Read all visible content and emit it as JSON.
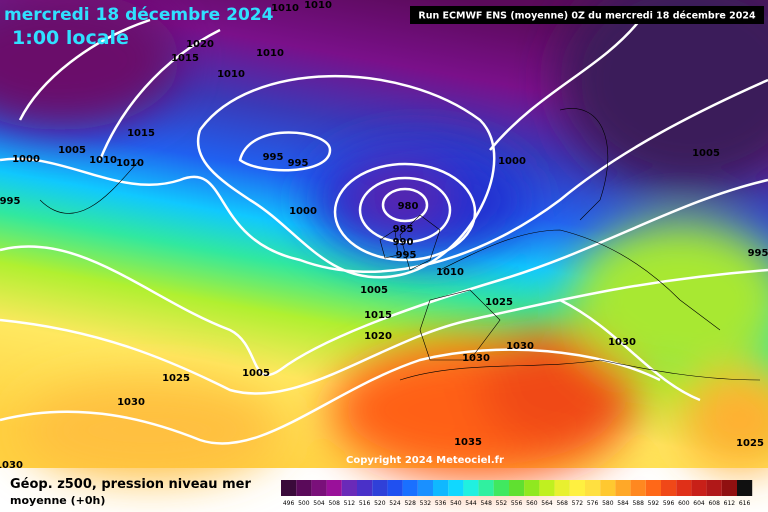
{
  "header": {
    "date": "mercredi 18 décembre 2024",
    "time": "1:00 locale",
    "run": "Run ECMWF ENS (moyenne) 0Z du mercredi 18 décembre 2024"
  },
  "isobar_labels": [
    "1010",
    "1010",
    "1020",
    "1015",
    "1010",
    "1010",
    "1015",
    "1005",
    "1000",
    "1010",
    "1010",
    "995",
    "995",
    "1000",
    "1005",
    "995",
    "1000",
    "980",
    "985",
    "990",
    "995",
    "1010",
    "1005",
    "1025",
    "1015",
    "1020",
    "1030",
    "1030",
    "1030",
    "1005",
    "1025",
    "1030",
    "1035",
    "1025",
    "995",
    "1030"
  ],
  "copyright": "Copyright 2024 Meteociel.fr",
  "legend": {
    "title": "Géop. z500, pression niveau mer",
    "subtitle": "moyenne   (+0h)",
    "scale": [
      "496",
      "500",
      "504",
      "508",
      "512",
      "516",
      "520",
      "524",
      "528",
      "532",
      "536",
      "540",
      "544",
      "548",
      "552",
      "556",
      "560",
      "564",
      "568",
      "572",
      "576",
      "580",
      "584",
      "588",
      "592",
      "596",
      "600",
      "604",
      "608",
      "612",
      "616"
    ],
    "colors": [
      "#3a0a3a",
      "#5a0a5a",
      "#7a107a",
      "#9a109a",
      "#6a2ab8",
      "#4a30c8",
      "#3040d8",
      "#2050f0",
      "#1a70ff",
      "#1a90ff",
      "#10b8ff",
      "#10d8ff",
      "#20f0e0",
      "#30f0a0",
      "#40e860",
      "#60e030",
      "#90e820",
      "#c0f020",
      "#e8f030",
      "#fff040",
      "#ffe040",
      "#ffc830",
      "#ffa828",
      "#ff8820",
      "#ff6818",
      "#f04818",
      "#e03018",
      "#c82018",
      "#b01818",
      "#901010",
      "#101010"
    ]
  }
}
